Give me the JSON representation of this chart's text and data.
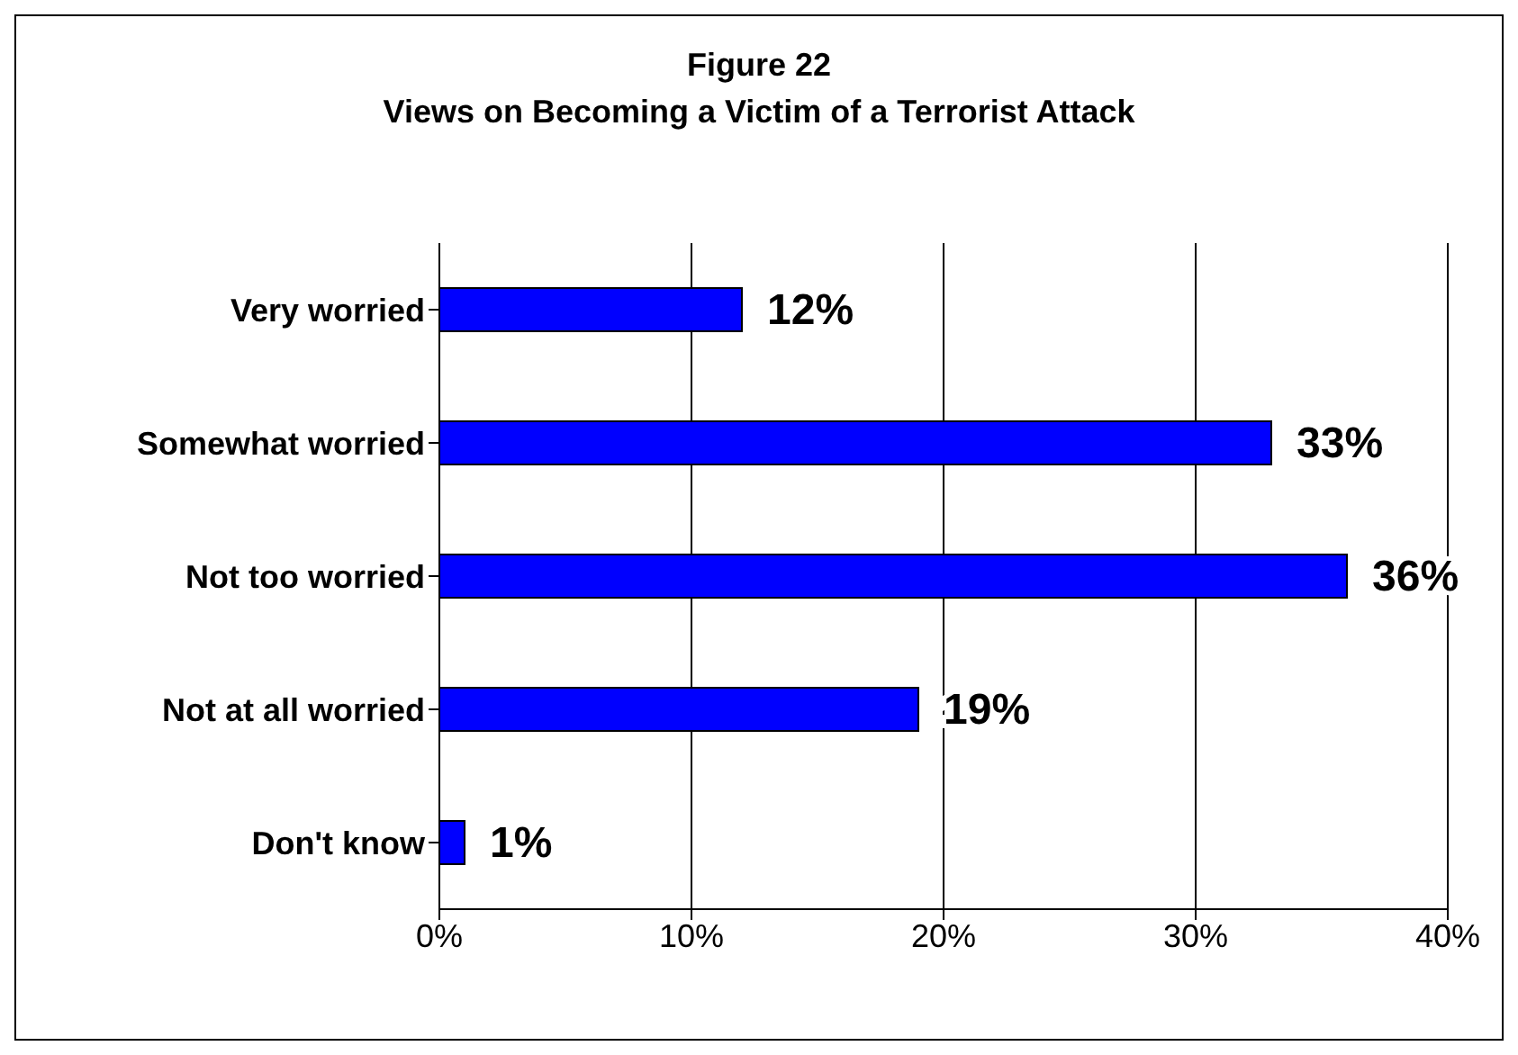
{
  "chart_data": {
    "type": "bar",
    "orientation": "horizontal",
    "title": "Figure 22",
    "subtitle": "Views on Becoming a Victim of a Terrorist Attack",
    "categories": [
      "Very worried",
      "Somewhat worried",
      "Not too worried",
      "Not at all worried",
      "Don't know"
    ],
    "values": [
      12,
      33,
      36,
      19,
      1
    ],
    "value_labels": [
      "12%",
      "33%",
      "36%",
      "19%",
      "1%"
    ],
    "color": "#0000ff",
    "xlim": [
      0,
      40
    ],
    "xticks": [
      {
        "value": 0,
        "label": "0%"
      },
      {
        "value": 10,
        "label": "10%"
      },
      {
        "value": 20,
        "label": "20%"
      },
      {
        "value": 30,
        "label": "30%"
      },
      {
        "value": 40,
        "label": "40%"
      }
    ],
    "grid": "x",
    "legend": false
  }
}
